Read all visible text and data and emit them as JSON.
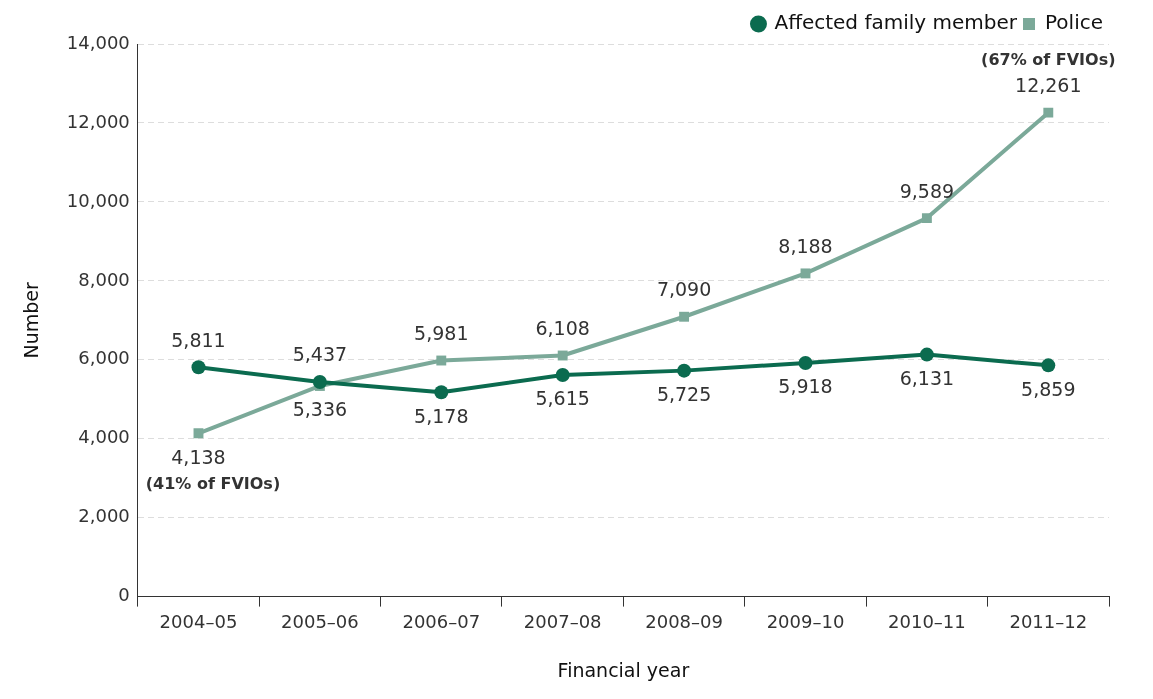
{
  "chart_data": {
    "type": "line",
    "xlabel": "Financial year",
    "ylabel": "Number",
    "categories": [
      "2004–05",
      "2005–06",
      "2006–07",
      "2007–08",
      "2008–09",
      "2009–10",
      "2010–11",
      "2011–12"
    ],
    "series": [
      {
        "name": "Affected family member",
        "color": "#0b6b4f",
        "marker": "circle",
        "values": [
          5811,
          5437,
          5178,
          5615,
          5725,
          5918,
          6131,
          5859
        ],
        "value_labels": [
          "5,811",
          "5,437",
          "5,178",
          "5,615",
          "5,725",
          "5,918",
          "6,131",
          "5,859"
        ]
      },
      {
        "name": "Police",
        "color": "#7ba999",
        "marker": "square",
        "values": [
          4138,
          5336,
          5981,
          6108,
          7090,
          8188,
          9589,
          12261
        ],
        "value_labels": [
          "4,138",
          "5,336",
          "5,981",
          "6,108",
          "7,090",
          "8,188",
          "9,589",
          "12,261"
        ]
      }
    ],
    "ylim": [
      0,
      14000
    ],
    "yticks": [
      {
        "value": 0,
        "label": "0"
      },
      {
        "value": 2000,
        "label": "2,000"
      },
      {
        "value": 4000,
        "label": "4,000"
      },
      {
        "value": 6000,
        "label": "6,000"
      },
      {
        "value": 8000,
        "label": "8,000"
      },
      {
        "value": 10000,
        "label": "10,000"
      },
      {
        "value": 12000,
        "label": "12,000"
      },
      {
        "value": 14000,
        "label": "14,000"
      }
    ],
    "grid": "y",
    "legend": "top right",
    "line_style": "solid",
    "annotations": [
      {
        "text": "(41% of FVIOs)",
        "x": "2004–05",
        "y": 4138
      },
      {
        "text": "(67% of FVIOs)",
        "x": "2011–12",
        "y": 12261
      }
    ]
  }
}
